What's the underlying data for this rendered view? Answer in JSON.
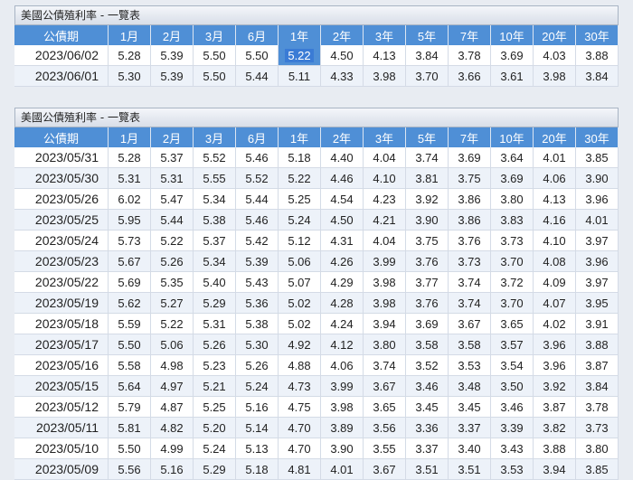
{
  "panel1": {
    "title": "美國公債殖利率 - 一覽表",
    "headers": [
      "公債期",
      "1月",
      "2月",
      "3月",
      "6月",
      "1年",
      "2年",
      "3年",
      "5年",
      "7年",
      "10年",
      "20年",
      "30年"
    ],
    "rows": [
      [
        "2023/06/02",
        "5.28",
        "5.39",
        "5.50",
        "5.50",
        "5.22",
        "4.50",
        "4.13",
        "3.84",
        "3.78",
        "3.69",
        "4.03",
        "3.88"
      ],
      [
        "2023/06/01",
        "5.30",
        "5.39",
        "5.50",
        "5.44",
        "5.11",
        "4.33",
        "3.98",
        "3.70",
        "3.66",
        "3.61",
        "3.98",
        "3.84"
      ]
    ]
  },
  "panel2": {
    "title": "美國公債殖利率 - 一覽表",
    "headers": [
      "公債期",
      "1月",
      "2月",
      "3月",
      "6月",
      "1年",
      "2年",
      "3年",
      "5年",
      "7年",
      "10年",
      "20年",
      "30年"
    ],
    "rows": [
      [
        "2023/05/31",
        "5.28",
        "5.37",
        "5.52",
        "5.46",
        "5.18",
        "4.40",
        "4.04",
        "3.74",
        "3.69",
        "3.64",
        "4.01",
        "3.85"
      ],
      [
        "2023/05/30",
        "5.31",
        "5.31",
        "5.55",
        "5.52",
        "5.22",
        "4.46",
        "4.10",
        "3.81",
        "3.75",
        "3.69",
        "4.06",
        "3.90"
      ],
      [
        "2023/05/26",
        "6.02",
        "5.47",
        "5.34",
        "5.44",
        "5.25",
        "4.54",
        "4.23",
        "3.92",
        "3.86",
        "3.80",
        "4.13",
        "3.96"
      ],
      [
        "2023/05/25",
        "5.95",
        "5.44",
        "5.38",
        "5.46",
        "5.24",
        "4.50",
        "4.21",
        "3.90",
        "3.86",
        "3.83",
        "4.16",
        "4.01"
      ],
      [
        "2023/05/24",
        "5.73",
        "5.22",
        "5.37",
        "5.42",
        "5.12",
        "4.31",
        "4.04",
        "3.75",
        "3.76",
        "3.73",
        "4.10",
        "3.97"
      ],
      [
        "2023/05/23",
        "5.67",
        "5.26",
        "5.34",
        "5.39",
        "5.06",
        "4.26",
        "3.99",
        "3.76",
        "3.73",
        "3.70",
        "4.08",
        "3.96"
      ],
      [
        "2023/05/22",
        "5.69",
        "5.35",
        "5.40",
        "5.43",
        "5.07",
        "4.29",
        "3.98",
        "3.77",
        "3.74",
        "3.72",
        "4.09",
        "3.97"
      ],
      [
        "2023/05/19",
        "5.62",
        "5.27",
        "5.29",
        "5.36",
        "5.02",
        "4.28",
        "3.98",
        "3.76",
        "3.74",
        "3.70",
        "4.07",
        "3.95"
      ],
      [
        "2023/05/18",
        "5.59",
        "5.22",
        "5.31",
        "5.38",
        "5.02",
        "4.24",
        "3.94",
        "3.69",
        "3.67",
        "3.65",
        "4.02",
        "3.91"
      ],
      [
        "2023/05/17",
        "5.50",
        "5.06",
        "5.26",
        "5.30",
        "4.92",
        "4.12",
        "3.80",
        "3.58",
        "3.58",
        "3.57",
        "3.96",
        "3.88"
      ],
      [
        "2023/05/16",
        "5.58",
        "4.98",
        "5.23",
        "5.26",
        "4.88",
        "4.06",
        "3.74",
        "3.52",
        "3.53",
        "3.54",
        "3.96",
        "3.87"
      ],
      [
        "2023/05/15",
        "5.64",
        "4.97",
        "5.21",
        "5.24",
        "4.73",
        "3.99",
        "3.67",
        "3.46",
        "3.48",
        "3.50",
        "3.92",
        "3.84"
      ],
      [
        "2023/05/12",
        "5.79",
        "4.87",
        "5.25",
        "5.16",
        "4.75",
        "3.98",
        "3.65",
        "3.45",
        "3.45",
        "3.46",
        "3.87",
        "3.78"
      ],
      [
        "2023/05/11",
        "5.81",
        "4.82",
        "5.20",
        "5.14",
        "4.70",
        "3.89",
        "3.56",
        "3.36",
        "3.37",
        "3.39",
        "3.82",
        "3.73"
      ],
      [
        "2023/05/10",
        "5.50",
        "4.99",
        "5.24",
        "5.13",
        "4.70",
        "3.90",
        "3.55",
        "3.37",
        "3.40",
        "3.43",
        "3.88",
        "3.80"
      ],
      [
        "2023/05/09",
        "5.56",
        "5.16",
        "5.29",
        "5.18",
        "4.81",
        "4.01",
        "3.67",
        "3.51",
        "3.51",
        "3.53",
        "3.94",
        "3.85"
      ]
    ]
  },
  "highlight": {
    "panel": "panel1",
    "row": 0,
    "col": 5
  }
}
